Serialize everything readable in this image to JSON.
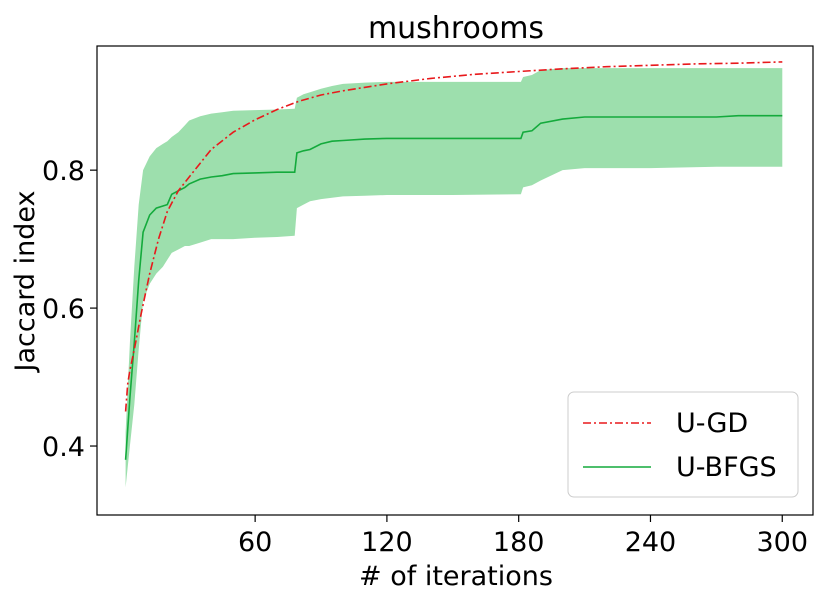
{
  "chart_data": {
    "type": "line",
    "title": "mushrooms",
    "xlabel": "# of iterations",
    "ylabel": "Jaccard index",
    "xlim": [
      -12,
      314
    ],
    "ylim": [
      0.3,
      0.98
    ],
    "xticks": [
      60,
      120,
      180,
      240,
      300
    ],
    "yticks": [
      0.4,
      0.6,
      0.8
    ],
    "ytick_labels": [
      "0.4",
      "0.6",
      "0.8"
    ],
    "legend_position": "lower-right",
    "grid": false,
    "series": [
      {
        "name": "U-GD",
        "color": "#e8191c",
        "style": "dash-dot",
        "x": [
          1,
          2,
          3,
          5,
          8,
          12,
          16,
          20,
          25,
          30,
          35,
          40,
          50,
          60,
          70,
          80,
          90,
          100,
          120,
          140,
          160,
          180,
          200,
          220,
          240,
          260,
          280,
          300
        ],
        "y": [
          0.45,
          0.49,
          0.51,
          0.54,
          0.59,
          0.65,
          0.7,
          0.74,
          0.77,
          0.79,
          0.81,
          0.83,
          0.855,
          0.873,
          0.888,
          0.9,
          0.909,
          0.915,
          0.925,
          0.933,
          0.939,
          0.943,
          0.947,
          0.95,
          0.952,
          0.954,
          0.955,
          0.957
        ]
      },
      {
        "name": "U-BFGS",
        "color": "#14aa3c",
        "style": "solid",
        "band_color": "#9ddfad",
        "x": [
          1,
          3,
          5,
          7,
          9,
          12,
          15,
          18,
          20,
          22,
          25,
          28,
          30,
          35,
          40,
          45,
          50,
          60,
          70,
          78,
          79,
          82,
          85,
          90,
          95,
          100,
          110,
          120,
          150,
          181,
          182,
          186,
          190,
          200,
          210,
          240,
          270,
          280,
          300
        ],
        "y": [
          0.38,
          0.47,
          0.55,
          0.64,
          0.71,
          0.735,
          0.745,
          0.748,
          0.75,
          0.765,
          0.77,
          0.775,
          0.78,
          0.787,
          0.79,
          0.792,
          0.795,
          0.796,
          0.797,
          0.797,
          0.825,
          0.828,
          0.83,
          0.838,
          0.842,
          0.843,
          0.845,
          0.846,
          0.846,
          0.846,
          0.855,
          0.857,
          0.868,
          0.874,
          0.877,
          0.877,
          0.877,
          0.879,
          0.879
        ],
        "lower": [
          0.34,
          0.4,
          0.46,
          0.54,
          0.61,
          0.635,
          0.65,
          0.66,
          0.67,
          0.68,
          0.685,
          0.69,
          0.69,
          0.695,
          0.7,
          0.7,
          0.7,
          0.702,
          0.703,
          0.705,
          0.745,
          0.75,
          0.755,
          0.758,
          0.76,
          0.762,
          0.763,
          0.764,
          0.764,
          0.765,
          0.775,
          0.778,
          0.785,
          0.8,
          0.803,
          0.803,
          0.805,
          0.805,
          0.805
        ],
        "upper": [
          0.42,
          0.55,
          0.66,
          0.75,
          0.8,
          0.82,
          0.832,
          0.838,
          0.842,
          0.848,
          0.855,
          0.865,
          0.872,
          0.878,
          0.882,
          0.884,
          0.886,
          0.887,
          0.888,
          0.889,
          0.905,
          0.91,
          0.913,
          0.918,
          0.922,
          0.925,
          0.927,
          0.928,
          0.928,
          0.928,
          0.935,
          0.938,
          0.945,
          0.948,
          0.948,
          0.948,
          0.948,
          0.948,
          0.948
        ]
      }
    ]
  }
}
